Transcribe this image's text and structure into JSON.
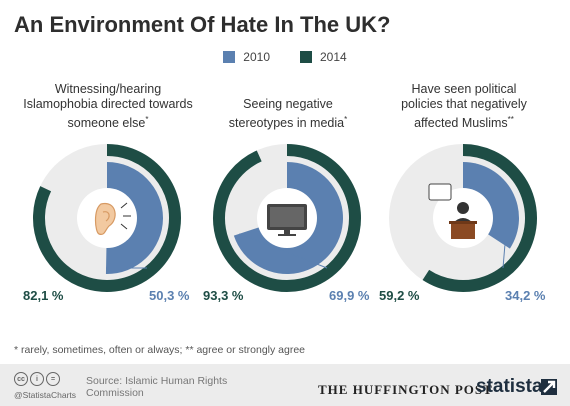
{
  "title": "An Environment Of Hate In The UK?",
  "legend": [
    {
      "label": "2010",
      "color": "#5b80b0"
    },
    {
      "label": "2014",
      "color": "#1e4d45"
    }
  ],
  "chart_data": {
    "type": "donut",
    "title": "An Environment Of Hate In The UK?",
    "series": [
      {
        "name": "2010",
        "color": "#5b80b0"
      },
      {
        "name": "2014",
        "color": "#1e4d45"
      }
    ],
    "charts": [
      {
        "label": "Witnessing/hearing Islamophobia directed towards someone else",
        "mark": "*",
        "icon": "ear-icon",
        "value_2014": 82.1,
        "value_2010": 50.3,
        "label_2014": "82,1 %",
        "label_2010": "50,3 %"
      },
      {
        "label": "Seeing negative stereotypes in media",
        "mark": "*",
        "icon": "monitor-icon",
        "value_2014": 93.3,
        "value_2010": 69.9,
        "label_2014": "93,3 %",
        "label_2010": "69,9 %"
      },
      {
        "label": "Have seen political policies that negatively affected Muslims",
        "mark": "**",
        "icon": "politician-icon",
        "value_2014": 59.2,
        "value_2010": 34.2,
        "label_2014": "59,2 %",
        "label_2010": "34,2 %"
      }
    ]
  },
  "labels": {
    "c1_line1": "Witnessing/hearing",
    "c1_line2": "Islamophobia directed towards",
    "c1_line3": "someone else",
    "c2_line1": "Seeing negative",
    "c2_line2": "stereotypes in media",
    "c3_line1": "Have seen political",
    "c3_line2": "policies that negatively",
    "c3_line3": "affected Muslims"
  },
  "footnote": "* rarely, sometimes, often or always; ** agree or strongly agree",
  "footer": {
    "handle": "@StatistaCharts",
    "source": "Source: Islamic Human Rights Commission",
    "publisher": "THE HUFFINGTON POST",
    "brand": "statista",
    "cc_icons": [
      "cc",
      "i",
      "="
    ]
  },
  "colors": {
    "track": "#ececec",
    "text_2010": "#5b80b0",
    "text_2014": "#1e4d45"
  }
}
